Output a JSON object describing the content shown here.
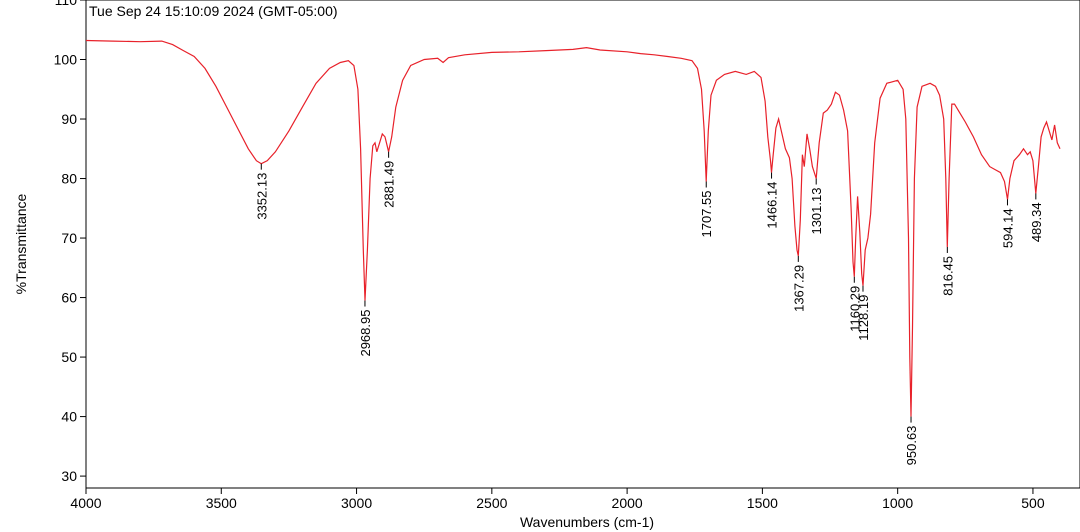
{
  "chart_data": {
    "type": "line",
    "timestamp": "Tue Sep 24 15:10:09 2024 (GMT-05:00)",
    "xlabel": "Wavenumbers (cm-1)",
    "ylabel": "%Transmittance",
    "xlim": [
      4000,
      400
    ],
    "x_reversed": true,
    "ylim": [
      28,
      110
    ],
    "x_ticks": [
      4000,
      3500,
      3000,
      2500,
      2000,
      1500,
      1000,
      500
    ],
    "y_ticks": [
      30,
      40,
      50,
      60,
      70,
      80,
      90,
      100,
      110
    ],
    "grid": false,
    "line_color": "#e8212a",
    "peaks": [
      {
        "label": "3352.13",
        "x": 3352.13,
        "y": 82.5
      },
      {
        "label": "2968.95",
        "x": 2968.95,
        "y": 59.5
      },
      {
        "label": "2881.49",
        "x": 2881.49,
        "y": 84.5
      },
      {
        "label": "1707.55",
        "x": 1707.55,
        "y": 79.5
      },
      {
        "label": "1466.14",
        "x": 1466.14,
        "y": 81.0
      },
      {
        "label": "1367.29",
        "x": 1367.29,
        "y": 67.0
      },
      {
        "label": "1301.13",
        "x": 1301.13,
        "y": 80.0
      },
      {
        "label": "1160.29",
        "x": 1160.29,
        "y": 63.5
      },
      {
        "label": "1128.19",
        "x": 1128.19,
        "y": 62.0
      },
      {
        "label": "950.63",
        "x": 950.63,
        "y": 40.0
      },
      {
        "label": "816.45",
        "x": 816.45,
        "y": 68.5
      },
      {
        "label": "594.14",
        "x": 594.14,
        "y": 76.5
      },
      {
        "label": "489.34",
        "x": 489.34,
        "y": 77.5
      }
    ],
    "spectrum": [
      [
        4000,
        103.2
      ],
      [
        3900,
        103.1
      ],
      [
        3800,
        103.0
      ],
      [
        3720,
        103.1
      ],
      [
        3680,
        102.5
      ],
      [
        3640,
        101.5
      ],
      [
        3600,
        100.5
      ],
      [
        3560,
        98.5
      ],
      [
        3520,
        95.5
      ],
      [
        3480,
        92.0
      ],
      [
        3440,
        88.5
      ],
      [
        3400,
        85.0
      ],
      [
        3370,
        83.0
      ],
      [
        3352.13,
        82.5
      ],
      [
        3330,
        83.0
      ],
      [
        3300,
        84.5
      ],
      [
        3250,
        88.0
      ],
      [
        3200,
        92.0
      ],
      [
        3150,
        96.0
      ],
      [
        3100,
        98.5
      ],
      [
        3060,
        99.5
      ],
      [
        3030,
        99.8
      ],
      [
        3010,
        99.0
      ],
      [
        2995,
        95.0
      ],
      [
        2985,
        85.0
      ],
      [
        2975,
        68.0
      ],
      [
        2968.95,
        59.5
      ],
      [
        2960,
        68.0
      ],
      [
        2950,
        80.0
      ],
      [
        2940,
        85.5
      ],
      [
        2932,
        86.0
      ],
      [
        2925,
        84.5
      ],
      [
        2915,
        86.0
      ],
      [
        2905,
        87.5
      ],
      [
        2895,
        87.0
      ],
      [
        2881.49,
        84.5
      ],
      [
        2870,
        87.0
      ],
      [
        2855,
        92.0
      ],
      [
        2830,
        96.5
      ],
      [
        2800,
        99.0
      ],
      [
        2750,
        100.0
      ],
      [
        2700,
        100.2
      ],
      [
        2680,
        99.5
      ],
      [
        2660,
        100.3
      ],
      [
        2600,
        100.8
      ],
      [
        2500,
        101.2
      ],
      [
        2400,
        101.3
      ],
      [
        2300,
        101.5
      ],
      [
        2200,
        101.7
      ],
      [
        2150,
        102.0
      ],
      [
        2100,
        101.6
      ],
      [
        2000,
        101.3
      ],
      [
        1950,
        101.0
      ],
      [
        1900,
        100.8
      ],
      [
        1850,
        100.5
      ],
      [
        1800,
        100.2
      ],
      [
        1760,
        99.8
      ],
      [
        1740,
        98.5
      ],
      [
        1725,
        95.0
      ],
      [
        1715,
        88.0
      ],
      [
        1707.55,
        79.5
      ],
      [
        1700,
        88.0
      ],
      [
        1690,
        94.0
      ],
      [
        1670,
        96.5
      ],
      [
        1640,
        97.5
      ],
      [
        1600,
        98.0
      ],
      [
        1560,
        97.5
      ],
      [
        1530,
        98.0
      ],
      [
        1505,
        97.0
      ],
      [
        1490,
        93.0
      ],
      [
        1480,
        87.0
      ],
      [
        1470,
        83.0
      ],
      [
        1466.14,
        81.0
      ],
      [
        1460,
        84.0
      ],
      [
        1450,
        88.5
      ],
      [
        1440,
        90.0
      ],
      [
        1430,
        88.0
      ],
      [
        1415,
        85.0
      ],
      [
        1400,
        83.5
      ],
      [
        1390,
        80.0
      ],
      [
        1380,
        72.0
      ],
      [
        1372,
        68.0
      ],
      [
        1367.29,
        67.0
      ],
      [
        1360,
        73.0
      ],
      [
        1352,
        84.0
      ],
      [
        1345,
        82.0
      ],
      [
        1335,
        87.5
      ],
      [
        1325,
        85.0
      ],
      [
        1315,
        82.0
      ],
      [
        1301.13,
        80.0
      ],
      [
        1290,
        86.0
      ],
      [
        1275,
        91.0
      ],
      [
        1260,
        91.5
      ],
      [
        1245,
        92.5
      ],
      [
        1230,
        94.5
      ],
      [
        1215,
        94.0
      ],
      [
        1200,
        91.5
      ],
      [
        1185,
        88.0
      ],
      [
        1172,
        75.0
      ],
      [
        1165,
        66.0
      ],
      [
        1160.29,
        63.5
      ],
      [
        1155,
        70.0
      ],
      [
        1148,
        77.0
      ],
      [
        1140,
        71.0
      ],
      [
        1133,
        64.0
      ],
      [
        1128.19,
        62.0
      ],
      [
        1120,
        68.0
      ],
      [
        1110,
        70.0
      ],
      [
        1100,
        74.0
      ],
      [
        1085,
        86.0
      ],
      [
        1065,
        93.5
      ],
      [
        1040,
        96.0
      ],
      [
        1000,
        96.5
      ],
      [
        980,
        95.0
      ],
      [
        970,
        90.0
      ],
      [
        960,
        70.0
      ],
      [
        955,
        50.0
      ],
      [
        950.63,
        40.0
      ],
      [
        945,
        55.0
      ],
      [
        938,
        80.0
      ],
      [
        928,
        92.0
      ],
      [
        910,
        95.5
      ],
      [
        880,
        96.0
      ],
      [
        860,
        95.5
      ],
      [
        845,
        94.0
      ],
      [
        830,
        90.0
      ],
      [
        822,
        80.0
      ],
      [
        816.45,
        68.5
      ],
      [
        810,
        80.0
      ],
      [
        800,
        92.5
      ],
      [
        790,
        92.5
      ],
      [
        770,
        91.0
      ],
      [
        750,
        89.5
      ],
      [
        720,
        87.0
      ],
      [
        690,
        84.0
      ],
      [
        660,
        82.0
      ],
      [
        640,
        81.5
      ],
      [
        620,
        81.0
      ],
      [
        605,
        79.5
      ],
      [
        594.14,
        76.5
      ],
      [
        585,
        80.0
      ],
      [
        570,
        83.0
      ],
      [
        550,
        84.0
      ],
      [
        535,
        85.0
      ],
      [
        520,
        84.0
      ],
      [
        510,
        84.5
      ],
      [
        500,
        83.0
      ],
      [
        489.34,
        77.5
      ],
      [
        480,
        82.0
      ],
      [
        470,
        87.0
      ],
      [
        460,
        88.5
      ],
      [
        450,
        89.5
      ],
      [
        440,
        88.0
      ],
      [
        430,
        86.5
      ],
      [
        420,
        89.0
      ],
      [
        410,
        86.0
      ],
      [
        400,
        85.0
      ]
    ]
  }
}
